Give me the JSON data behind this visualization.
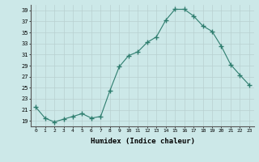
{
  "x": [
    0,
    1,
    2,
    3,
    4,
    5,
    6,
    7,
    8,
    9,
    10,
    11,
    12,
    13,
    14,
    15,
    16,
    17,
    18,
    19,
    20,
    21,
    22,
    23
  ],
  "y": [
    21.5,
    19.5,
    18.8,
    19.3,
    19.8,
    20.3,
    19.5,
    19.8,
    24.5,
    28.8,
    30.8,
    31.5,
    33.2,
    34.2,
    37.2,
    39.2,
    39.2,
    38.0,
    36.2,
    35.2,
    32.5,
    29.2,
    27.3,
    25.5
  ],
  "line_color": "#2e7d6e",
  "marker": "+",
  "marker_size": 4,
  "bg_color": "#cce8e8",
  "grid_color": "#b8d0d0",
  "xlabel": "Humidex (Indice chaleur)",
  "ylim": [
    18,
    40
  ],
  "xlim": [
    -0.5,
    23.5
  ],
  "yticks": [
    19,
    21,
    23,
    25,
    27,
    29,
    31,
    33,
    35,
    37,
    39
  ],
  "xticks": [
    0,
    1,
    2,
    3,
    4,
    5,
    6,
    7,
    8,
    9,
    10,
    11,
    12,
    13,
    14,
    15,
    16,
    17,
    18,
    19,
    20,
    21,
    22,
    23
  ]
}
